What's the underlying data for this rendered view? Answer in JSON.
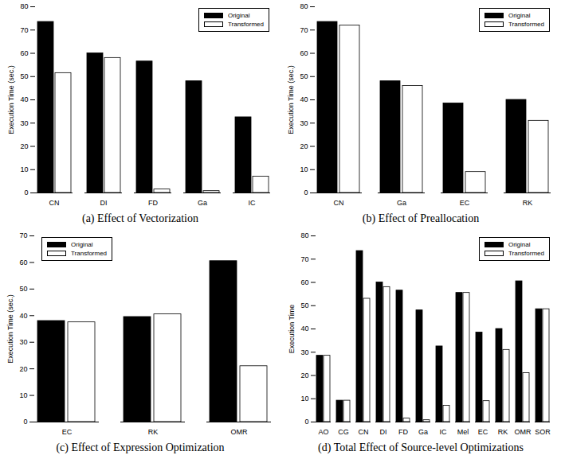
{
  "chart_data": [
    {
      "type": "bar",
      "title": "(a) Effect of Vectorization",
      "y_label": "Execution Time (sec.)",
      "categories": [
        "CN",
        "DI",
        "FD",
        "Ga",
        "IC"
      ],
      "series": [
        {
          "name": "Original",
          "color": "#000000",
          "values": [
            73.5,
            60,
            56.5,
            48,
            32.5
          ]
        },
        {
          "name": "Transformed",
          "color": "#ffffff",
          "values": [
            51.5,
            58,
            1.5,
            0.8,
            7
          ]
        }
      ],
      "ylim": [
        0,
        80
      ],
      "yticks": [
        0,
        10,
        20,
        30,
        40,
        50,
        60,
        70,
        80
      ],
      "legend": "upper right"
    },
    {
      "type": "bar",
      "title": "(b) Effect of Preallocation",
      "y_label": "Execution Time (sec.)",
      "categories": [
        "CN",
        "Ga",
        "EC",
        "RK"
      ],
      "series": [
        {
          "name": "Original",
          "color": "#000000",
          "values": [
            73.5,
            48,
            38.5,
            40
          ]
        },
        {
          "name": "Transformed",
          "color": "#ffffff",
          "values": [
            72,
            46,
            9,
            31
          ]
        }
      ],
      "ylim": [
        0,
        80
      ],
      "yticks": [
        0,
        10,
        20,
        30,
        40,
        50,
        60,
        70,
        80
      ],
      "legend": "upper right"
    },
    {
      "type": "bar",
      "title": "(c) Effect of Expression Optimization",
      "y_label": "Execution Time (sec.)",
      "categories": [
        "EC",
        "RK",
        "OMR"
      ],
      "series": [
        {
          "name": "Original",
          "color": "#000000",
          "values": [
            38,
            39.5,
            60.5
          ]
        },
        {
          "name": "Transformed",
          "color": "#ffffff",
          "values": [
            37.5,
            40.5,
            21
          ]
        }
      ],
      "ylim": [
        0,
        70
      ],
      "yticks": [
        0,
        10,
        20,
        30,
        40,
        50,
        60,
        70
      ],
      "legend": "upper left"
    },
    {
      "type": "bar",
      "title": "(d) Total Effect of Source-level Optimizations",
      "y_label": "Execution Time",
      "categories": [
        "AO",
        "CG",
        "CN",
        "DI",
        "FD",
        "Ga",
        "IC",
        "Mel",
        "EC",
        "RK",
        "OMR",
        "SOR"
      ],
      "series": [
        {
          "name": "Original",
          "color": "#000000",
          "values": [
            28.5,
            9.2,
            73.5,
            60,
            56.5,
            48,
            32.5,
            55.5,
            38.5,
            40,
            60.5,
            48.5
          ]
        },
        {
          "name": "Transformed",
          "color": "#ffffff",
          "values": [
            28.5,
            9.2,
            53,
            58,
            1.5,
            0.8,
            7,
            55.5,
            9,
            31,
            21,
            48.5
          ]
        }
      ],
      "ylim": [
        0,
        80
      ],
      "yticks": [
        0,
        10,
        20,
        30,
        40,
        50,
        60,
        70,
        80
      ],
      "legend": "upper right"
    }
  ]
}
